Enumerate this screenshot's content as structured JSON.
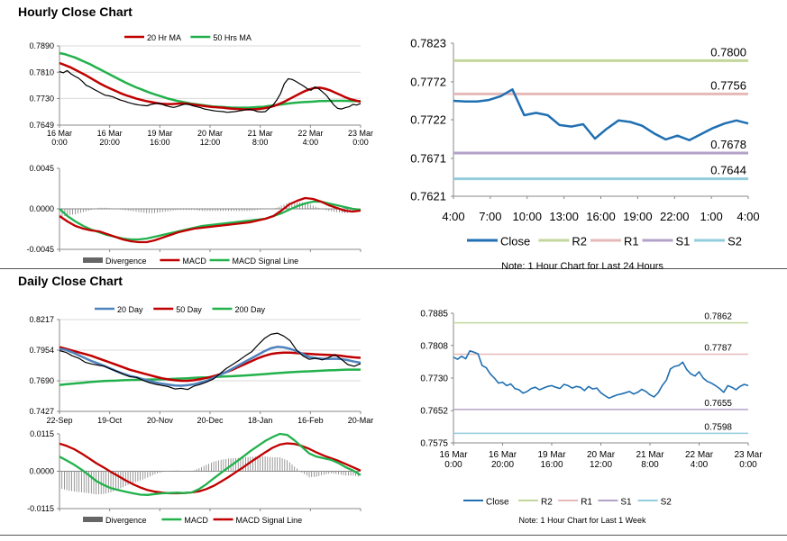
{
  "sections": {
    "hourly_title": "Hourly Close Chart",
    "daily_title": "Daily Close Chart"
  },
  "colors": {
    "red": "#c00000",
    "green": "#22b14c",
    "blue": "#1f6fb2",
    "black": "#000000",
    "r2": "#c3d69b",
    "r1": "#e6b9b8",
    "s1": "#b3a2c7",
    "s2": "#93cddd",
    "steel": "#4f81bd"
  },
  "chart_data": [
    {
      "id": "hourly-price-ma",
      "type": "line",
      "legend": [
        "20 Hr MA",
        "50 Hrs MA"
      ],
      "y_ticks": [
        "0.7890",
        "0.7810",
        "0.7730",
        "0.7649"
      ],
      "ylim": [
        0.7649,
        0.789
      ],
      "x_ticks": [
        [
          "16 Mar",
          "0:00"
        ],
        [
          "16 Mar",
          "20:00"
        ],
        [
          "19 Mar",
          "16:00"
        ],
        [
          "20 Mar",
          "12:00"
        ],
        [
          "21 Mar",
          "8:00"
        ],
        [
          "22 Mar",
          "4:00"
        ],
        [
          "23 Mar",
          "0:00"
        ]
      ],
      "series": [
        {
          "name": "Price",
          "color": "black",
          "values": [
            0.7812,
            0.7808,
            0.7815,
            0.7805,
            0.7798,
            0.7792,
            0.7782,
            0.777,
            0.7765,
            0.7758,
            0.7752,
            0.7746,
            0.774,
            0.7738,
            0.7735,
            0.773,
            0.7725,
            0.7722,
            0.7718,
            0.7715,
            0.7712,
            0.771,
            0.7709,
            0.7708,
            0.7712,
            0.7714,
            0.7716,
            0.7712,
            0.7708,
            0.7705,
            0.7703,
            0.7706,
            0.771,
            0.7713,
            0.7712,
            0.7708,
            0.7705,
            0.7702,
            0.7698,
            0.7696,
            0.7694,
            0.7692,
            0.7691,
            0.769,
            0.7688,
            0.7689,
            0.769,
            0.7692,
            0.7694,
            0.7696,
            0.7697,
            0.7694,
            0.769,
            0.7689,
            0.769,
            0.77,
            0.771,
            0.7725,
            0.7745,
            0.7775,
            0.779,
            0.7788,
            0.7782,
            0.7775,
            0.7768,
            0.776,
            0.7755,
            0.7765,
            0.776,
            0.775,
            0.774,
            0.7725,
            0.771,
            0.77,
            0.7698,
            0.7702,
            0.7705,
            0.7712,
            0.771,
            0.7715
          ]
        },
        {
          "name": "20 Hr MA",
          "color": "red",
          "values": [
            0.7838,
            0.7832,
            0.7826,
            0.7818,
            0.781,
            0.7802,
            0.7793,
            0.7784,
            0.7775,
            0.7767,
            0.776,
            0.7753,
            0.7746,
            0.774,
            0.7735,
            0.773,
            0.7726,
            0.7722,
            0.7719,
            0.7716,
            0.7714,
            0.7713,
            0.7713,
            0.7714,
            0.7715,
            0.7714,
            0.7712,
            0.771,
            0.7708,
            0.7706,
            0.7704,
            0.7703,
            0.7702,
            0.77,
            0.7699,
            0.7698,
            0.7697,
            0.7697,
            0.7697,
            0.7698,
            0.77,
            0.7703,
            0.7707,
            0.7713,
            0.772,
            0.7728,
            0.7736,
            0.7744,
            0.7752,
            0.7758,
            0.7762,
            0.7763,
            0.776,
            0.7755,
            0.7748,
            0.7741,
            0.7734,
            0.7728,
            0.7724,
            0.772
          ]
        },
        {
          "name": "50 Hrs MA",
          "color": "green",
          "values": [
            0.7868,
            0.7865,
            0.786,
            0.7855,
            0.7848,
            0.7841,
            0.7834,
            0.7826,
            0.7818,
            0.781,
            0.7802,
            0.7794,
            0.7786,
            0.7778,
            0.7771,
            0.7764,
            0.7758,
            0.7752,
            0.7746,
            0.7741,
            0.7736,
            0.7731,
            0.7727,
            0.7723,
            0.772,
            0.7717,
            0.7714,
            0.7712,
            0.771,
            0.7708,
            0.7706,
            0.7705,
            0.7704,
            0.7703,
            0.7702,
            0.7702,
            0.7702,
            0.7702,
            0.7703,
            0.7704,
            0.7705,
            0.7707,
            0.7709,
            0.7711,
            0.7713,
            0.7715,
            0.7717,
            0.7718,
            0.7719,
            0.772,
            0.7721,
            0.7722,
            0.7722,
            0.7723,
            0.7723,
            0.7723,
            0.7723,
            0.7722,
            0.7722,
            0.7722
          ]
        }
      ]
    },
    {
      "id": "hourly-macd",
      "type": "line",
      "legend": [
        "Divergence",
        "MACD",
        "MACD Signal Line"
      ],
      "y_ticks": [
        "0.0045",
        "0.0000",
        "-0.0045"
      ],
      "ylim": [
        -0.0045,
        0.0045
      ],
      "series": [
        {
          "name": "MACD",
          "color": "red",
          "values": [
            -0.0008,
            -0.0014,
            -0.0019,
            -0.0022,
            -0.0024,
            -0.0025,
            -0.0028,
            -0.0031,
            -0.0034,
            -0.0036,
            -0.0037,
            -0.0037,
            -0.0035,
            -0.0032,
            -0.0029,
            -0.0026,
            -0.0024,
            -0.0022,
            -0.0021,
            -0.002,
            -0.0019,
            -0.0018,
            -0.0017,
            -0.0016,
            -0.0015,
            -0.0013,
            -0.0011,
            -0.0008,
            -0.0002,
            0.0005,
            0.0009,
            0.0012,
            0.0011,
            0.0008,
            0.0004,
            0.0001,
            -0.0002,
            -0.0003,
            -0.0002
          ]
        },
        {
          "name": "MACD Signal Line",
          "color": "green",
          "values": [
            0.0,
            -0.0008,
            -0.0014,
            -0.0019,
            -0.0023,
            -0.0026,
            -0.0029,
            -0.0031,
            -0.0033,
            -0.0034,
            -0.0034,
            -0.0033,
            -0.0031,
            -0.0029,
            -0.0027,
            -0.0025,
            -0.0023,
            -0.0021,
            -0.0019,
            -0.0018,
            -0.0017,
            -0.0016,
            -0.0015,
            -0.0014,
            -0.0013,
            -0.0012,
            -0.0011,
            -0.0008,
            -0.0005,
            -0.0001,
            0.0003,
            0.0006,
            0.0008,
            0.0008,
            0.0006,
            0.0004,
            0.0002,
            0.0,
            -0.0001
          ]
        }
      ]
    },
    {
      "id": "hourly-24h",
      "type": "line",
      "y_ticks": [
        "0.7823",
        "0.7772",
        "0.7722",
        "0.7671",
        "0.7621"
      ],
      "ylim": [
        0.7621,
        0.7823
      ],
      "x_ticks": [
        "4:00",
        "7:00",
        "10:00",
        "13:00",
        "16:00",
        "19:00",
        "22:00",
        "1:00",
        "4:00"
      ],
      "levels": [
        {
          "name": "R2",
          "value": 0.78,
          "label": "0.7800",
          "color": "r2"
        },
        {
          "name": "R1",
          "value": 0.7756,
          "label": "0.7756",
          "color": "r1"
        },
        {
          "name": "S1",
          "value": 0.7678,
          "label": "0.7678",
          "color": "s1"
        },
        {
          "name": "S2",
          "value": 0.7644,
          "label": "0.7644",
          "color": "s2"
        }
      ],
      "series": [
        {
          "name": "Close",
          "color": "blue",
          "values": [
            0.7747,
            0.7746,
            0.7746,
            0.7748,
            0.7753,
            0.7762,
            0.7728,
            0.7731,
            0.7728,
            0.7715,
            0.7713,
            0.7716,
            0.7697,
            0.771,
            0.7721,
            0.7719,
            0.7714,
            0.7704,
            0.7696,
            0.7701,
            0.7695,
            0.7703,
            0.7711,
            0.7717,
            0.7721,
            0.7717
          ]
        }
      ],
      "legend": [
        "Close",
        "R2",
        "R1",
        "S1",
        "S2"
      ],
      "note": "Note: 1 Hour Chart for Last 24 Hours"
    },
    {
      "id": "daily-price-ma",
      "type": "line",
      "legend": [
        "20 Day",
        "50 Day",
        "200 Day"
      ],
      "y_ticks": [
        "0.8217",
        "0.7954",
        "0.7690",
        "0.7427"
      ],
      "ylim": [
        0.7427,
        0.8217
      ],
      "x_ticks": [
        "22-Sep",
        "19-Oct",
        "20-Nov",
        "20-Dec",
        "18-Jan",
        "16-Feb",
        "20-Mar"
      ],
      "series": [
        {
          "name": "Price",
          "color": "black",
          "values": [
            0.795,
            0.7935,
            0.7905,
            0.7885,
            0.785,
            0.7835,
            0.7825,
            0.7815,
            0.779,
            0.777,
            0.7745,
            0.7725,
            0.772,
            0.7695,
            0.7675,
            0.766,
            0.765,
            0.764,
            0.762,
            0.7625,
            0.7615,
            0.7645,
            0.766,
            0.768,
            0.7705,
            0.775,
            0.7795,
            0.783,
            0.7865,
            0.7905,
            0.794,
            0.8,
            0.8055,
            0.809,
            0.81,
            0.8075,
            0.8035,
            0.7955,
            0.7905,
            0.7875,
            0.7885,
            0.787,
            0.789,
            0.7915,
            0.7875,
            0.783,
            0.7815,
            0.7838
          ]
        },
        {
          "name": "20 Day",
          "color": "steel",
          "values": [
            0.7965,
            0.7955,
            0.7935,
            0.791,
            0.7885,
            0.786,
            0.784,
            0.7818,
            0.7795,
            0.777,
            0.775,
            0.7732,
            0.772,
            0.7705,
            0.769,
            0.7675,
            0.7665,
            0.7658,
            0.765,
            0.7648,
            0.7652,
            0.766,
            0.7675,
            0.769,
            0.7715,
            0.774,
            0.7765,
            0.7795,
            0.7825,
            0.7855,
            0.7885,
            0.7915,
            0.7945,
            0.797,
            0.7982,
            0.7978,
            0.7965,
            0.7945,
            0.792,
            0.7895,
            0.7885,
            0.788,
            0.7878,
            0.788,
            0.7877,
            0.7868,
            0.7855,
            0.7845
          ]
        },
        {
          "name": "50 Day",
          "color": "red",
          "values": [
            0.798,
            0.7965,
            0.795,
            0.7935,
            0.792,
            0.7905,
            0.7885,
            0.7865,
            0.7845,
            0.7825,
            0.7805,
            0.7785,
            0.777,
            0.7755,
            0.774,
            0.7725,
            0.7712,
            0.7702,
            0.7695,
            0.769,
            0.769,
            0.7695,
            0.7705,
            0.7715,
            0.773,
            0.7745,
            0.7765,
            0.7785,
            0.781,
            0.7835,
            0.786,
            0.7885,
            0.7905,
            0.792,
            0.7928,
            0.7932,
            0.7932,
            0.7928,
            0.7925,
            0.7922,
            0.7918,
            0.7915,
            0.7913,
            0.791,
            0.7905,
            0.7898,
            0.7892,
            0.7888
          ]
        },
        {
          "name": "200 Day",
          "color": "green",
          "values": [
            0.7655,
            0.766,
            0.7665,
            0.767,
            0.7675,
            0.768,
            0.7685,
            0.7688,
            0.769,
            0.7692,
            0.7695,
            0.7697,
            0.7698,
            0.77,
            0.7701,
            0.7702,
            0.7703,
            0.7705,
            0.7708,
            0.771,
            0.7712,
            0.7715,
            0.7718,
            0.772,
            0.7722,
            0.7725,
            0.7728,
            0.773,
            0.7733,
            0.7736,
            0.774,
            0.7744,
            0.7748,
            0.7752,
            0.7756,
            0.776,
            0.7764,
            0.7767,
            0.777,
            0.7772,
            0.7775,
            0.7778,
            0.778,
            0.7782,
            0.7784,
            0.7786,
            0.7786,
            0.7786
          ]
        }
      ]
    },
    {
      "id": "daily-macd",
      "type": "line",
      "legend": [
        "Divergence",
        "MACD",
        "MACD Signal Line"
      ],
      "y_ticks": [
        "0.0115",
        "0.0000",
        "-0.0115"
      ],
      "ylim": [
        -0.0115,
        0.0115
      ],
      "series": [
        {
          "name": "MACD",
          "color": "green",
          "values": [
            0.0045,
            0.0033,
            0.002,
            0.0005,
            -0.0012,
            -0.003,
            -0.0042,
            -0.0052,
            -0.0058,
            -0.0063,
            -0.0068,
            -0.0072,
            -0.0073,
            -0.007,
            -0.0068,
            -0.0067,
            -0.0066,
            -0.0067,
            -0.0065,
            -0.0055,
            -0.004,
            -0.0022,
            -0.0005,
            0.0012,
            0.0028,
            0.0045,
            0.0062,
            0.0078,
            0.0093,
            0.0105,
            0.0115,
            0.0112,
            0.0095,
            0.0075,
            0.0055,
            0.0045,
            0.004,
            0.0035,
            0.0025,
            0.0012,
            0.0002,
            -0.0012
          ]
        },
        {
          "name": "MACD Signal Line",
          "color": "red",
          "values": [
            0.0085,
            0.0078,
            0.0068,
            0.0055,
            0.004,
            0.0025,
            0.0012,
            -0.0002,
            -0.0015,
            -0.0028,
            -0.004,
            -0.005,
            -0.0058,
            -0.0063,
            -0.0066,
            -0.0068,
            -0.0068,
            -0.0067,
            -0.0065,
            -0.0062,
            -0.0055,
            -0.0045,
            -0.0032,
            -0.0018,
            -0.0003,
            0.0012,
            0.0028,
            0.0043,
            0.0058,
            0.0072,
            0.0082,
            0.0086,
            0.0084,
            0.0078,
            0.0069,
            0.0058,
            0.0048,
            0.004,
            0.0032,
            0.0022,
            0.0012,
            0.0002
          ]
        }
      ]
    },
    {
      "id": "hourly-1week",
      "type": "line",
      "y_ticks": [
        "0.7885",
        "0.7808",
        "0.7730",
        "0.7652",
        "0.7575"
      ],
      "ylim": [
        0.7575,
        0.7885
      ],
      "x_ticks": [
        [
          "16 Mar",
          "0:00"
        ],
        [
          "16 Mar",
          "20:00"
        ],
        [
          "19 Mar",
          "16:00"
        ],
        [
          "20 Mar",
          "12:00"
        ],
        [
          "21 Mar",
          "8:00"
        ],
        [
          "22 Mar",
          "4:00"
        ],
        [
          "23 Mar",
          "0:00"
        ]
      ],
      "levels": [
        {
          "name": "R2",
          "value": 0.7862,
          "label": "0.7862",
          "color": "r2"
        },
        {
          "name": "R1",
          "value": 0.7787,
          "label": "0.7787",
          "color": "r1"
        },
        {
          "name": "S1",
          "value": 0.7655,
          "label": "0.7655",
          "color": "s1"
        },
        {
          "name": "S2",
          "value": 0.7598,
          "label": "0.7598",
          "color": "s2"
        }
      ],
      "series": [
        {
          "name": "Close",
          "color": "blue",
          "values": [
            0.778,
            0.7775,
            0.7782,
            0.7776,
            0.7795,
            0.7792,
            0.7788,
            0.776,
            0.7755,
            0.774,
            0.773,
            0.7718,
            0.772,
            0.7712,
            0.7716,
            0.7705,
            0.7702,
            0.7694,
            0.7698,
            0.7705,
            0.7708,
            0.7702,
            0.7706,
            0.771,
            0.7712,
            0.7708,
            0.7705,
            0.7715,
            0.7712,
            0.7706,
            0.771,
            0.7708,
            0.77,
            0.771,
            0.7704,
            0.7706,
            0.7695,
            0.7688,
            0.7682,
            0.7686,
            0.769,
            0.7692,
            0.7695,
            0.7698,
            0.7692,
            0.7696,
            0.7703,
            0.7698,
            0.769,
            0.7685,
            0.7695,
            0.7712,
            0.7725,
            0.7752,
            0.7758,
            0.776,
            0.7768,
            0.775,
            0.774,
            0.7735,
            0.7745,
            0.773,
            0.7722,
            0.7718,
            0.7712,
            0.7705,
            0.7696,
            0.7712,
            0.7708,
            0.7702,
            0.771,
            0.7715,
            0.7712
          ]
        }
      ],
      "legend": [
        "Close",
        "R2",
        "R1",
        "S1",
        "S2"
      ],
      "note": "Note: 1 Hour Chart for Last 1 Week"
    }
  ]
}
